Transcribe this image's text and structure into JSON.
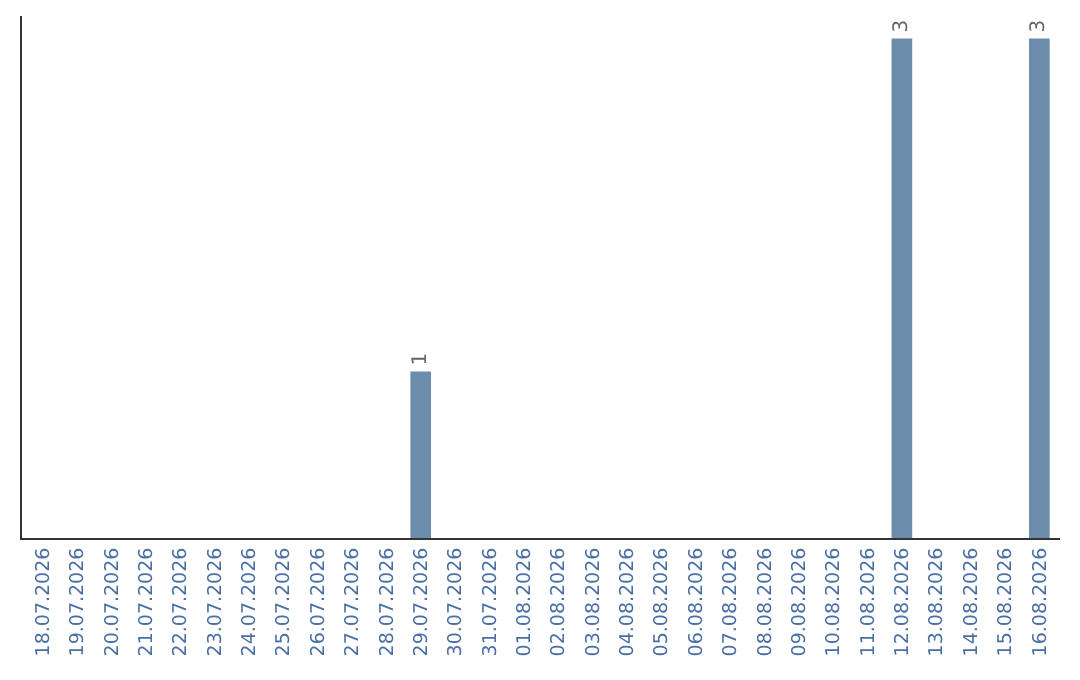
{
  "chart_data": {
    "type": "bar",
    "categories": [
      "18.07.2026",
      "19.07.2026",
      "20.07.2026",
      "21.07.2026",
      "22.07.2026",
      "23.07.2026",
      "24.07.2026",
      "25.07.2026",
      "26.07.2026",
      "27.07.2026",
      "28.07.2026",
      "29.07.2026",
      "30.07.2026",
      "31.07.2026",
      "01.08.2026",
      "02.08.2026",
      "03.08.2026",
      "04.08.2026",
      "05.08.2026",
      "06.08.2026",
      "07.08.2026",
      "08.08.2026",
      "09.08.2026",
      "10.08.2026",
      "11.08.2026",
      "12.08.2026",
      "13.08.2026",
      "14.08.2026",
      "15.08.2026",
      "16.08.2026"
    ],
    "values": [
      0,
      0,
      0,
      0,
      0,
      0,
      0,
      0,
      0,
      0,
      0,
      1,
      0,
      0,
      0,
      0,
      0,
      0,
      0,
      0,
      0,
      0,
      0,
      0,
      0,
      3,
      0,
      0,
      0,
      3
    ],
    "value_labels": [
      null,
      null,
      null,
      null,
      null,
      null,
      null,
      null,
      null,
      null,
      null,
      "1",
      null,
      null,
      null,
      null,
      null,
      null,
      null,
      null,
      null,
      null,
      null,
      null,
      null,
      "3",
      null,
      null,
      null,
      "3"
    ],
    "color": "#6b8caa",
    "tick_labels": "x"
  }
}
